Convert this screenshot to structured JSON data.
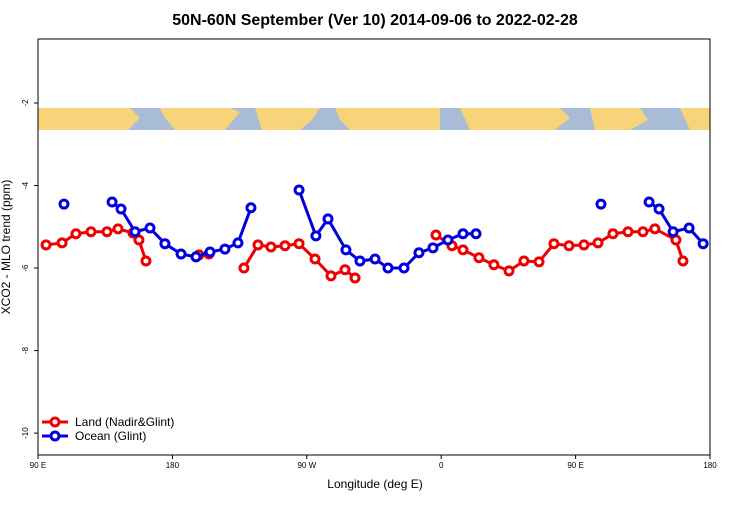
{
  "chart_data": {
    "type": "line",
    "title": "50N-60N September (Ver 10)   2014-09-06 to 2022-02-28",
    "x_label": "Longitude (deg E)",
    "y_label": "XCO2 - MLO trend (ppm)",
    "xlim": [
      90,
      540
    ],
    "xticks": [
      {
        "value": 90,
        "label": "90 E"
      },
      180,
      {
        "value": 270,
        "label": "90 W"
      },
      {
        "value": 360,
        "label": "0"
      },
      {
        "value": 450,
        "label": "90 E"
      },
      {
        "value": 540,
        "label": "180"
      }
    ],
    "ylim": [
      -10.53,
      -0.45
    ],
    "yticks": [
      -2,
      -4,
      -6,
      -8,
      -10
    ],
    "legend": "lower left",
    "series": [
      {
        "name": "Land (Nadir&Glint)",
        "color": "#ee0000",
        "x": [
          95.4,
          106.1,
          115.4,
          125.5,
          136.2,
          143.6,
          153.6,
          157.6,
          162.3,
          null,
          197.8,
          204.5,
          null,
          227.9,
          237.3,
          246.0,
          255.4,
          264.8,
          275.5,
          286.2,
          295.6,
          302.3,
          null,
          356.5,
          367.2,
          374.6,
          385.3,
          395.3,
          405.4,
          415.4,
          425.5,
          435.5,
          445.6,
          455.6,
          465.0,
          475.0,
          485.1,
          495.1,
          503.1,
          517.2,
          521.9
        ],
        "values": [
          -5.44,
          -5.39,
          -5.17,
          -5.12,
          -5.12,
          -5.05,
          -5.15,
          -5.32,
          -5.83,
          null,
          -5.68,
          -5.66,
          null,
          -6.0,
          -5.44,
          -5.49,
          -5.46,
          -5.41,
          -5.78,
          -6.19,
          -6.04,
          -6.24,
          null,
          -5.2,
          -5.46,
          -5.56,
          -5.75,
          -5.92,
          -6.07,
          -5.83,
          -5.85,
          -5.41,
          -5.46,
          -5.44,
          -5.39,
          -5.17,
          -5.12,
          -5.12,
          -5.05,
          -5.32,
          -5.83
        ]
      },
      {
        "name": "Ocean (Glint)",
        "color": "#0000dd",
        "x": [
          107.4,
          null,
          139.6,
          145.6,
          155.0,
          165.0,
          175.0,
          185.8,
          195.8,
          205.2,
          215.2,
          223.9,
          232.6,
          null,
          264.8,
          276.1,
          284.2,
          296.2,
          305.6,
          315.7,
          324.4,
          335.1,
          345.1,
          354.5,
          364.5,
          374.6,
          383.3,
          null,
          467.0,
          null,
          499.2,
          505.9,
          515.3,
          526.0,
          535.4
        ],
        "values": [
          -4.45,
          null,
          -4.4,
          -4.57,
          -5.12,
          -5.03,
          -5.41,
          -5.66,
          -5.73,
          -5.61,
          -5.54,
          -5.39,
          -4.54,
          null,
          -4.11,
          -5.22,
          -4.81,
          -5.56,
          -5.83,
          -5.78,
          -6.0,
          -6.0,
          -5.63,
          -5.51,
          -5.32,
          -5.17,
          -5.17,
          null,
          -4.45,
          null,
          -4.4,
          -4.57,
          -5.12,
          -5.03,
          -5.41
        ]
      }
    ]
  }
}
